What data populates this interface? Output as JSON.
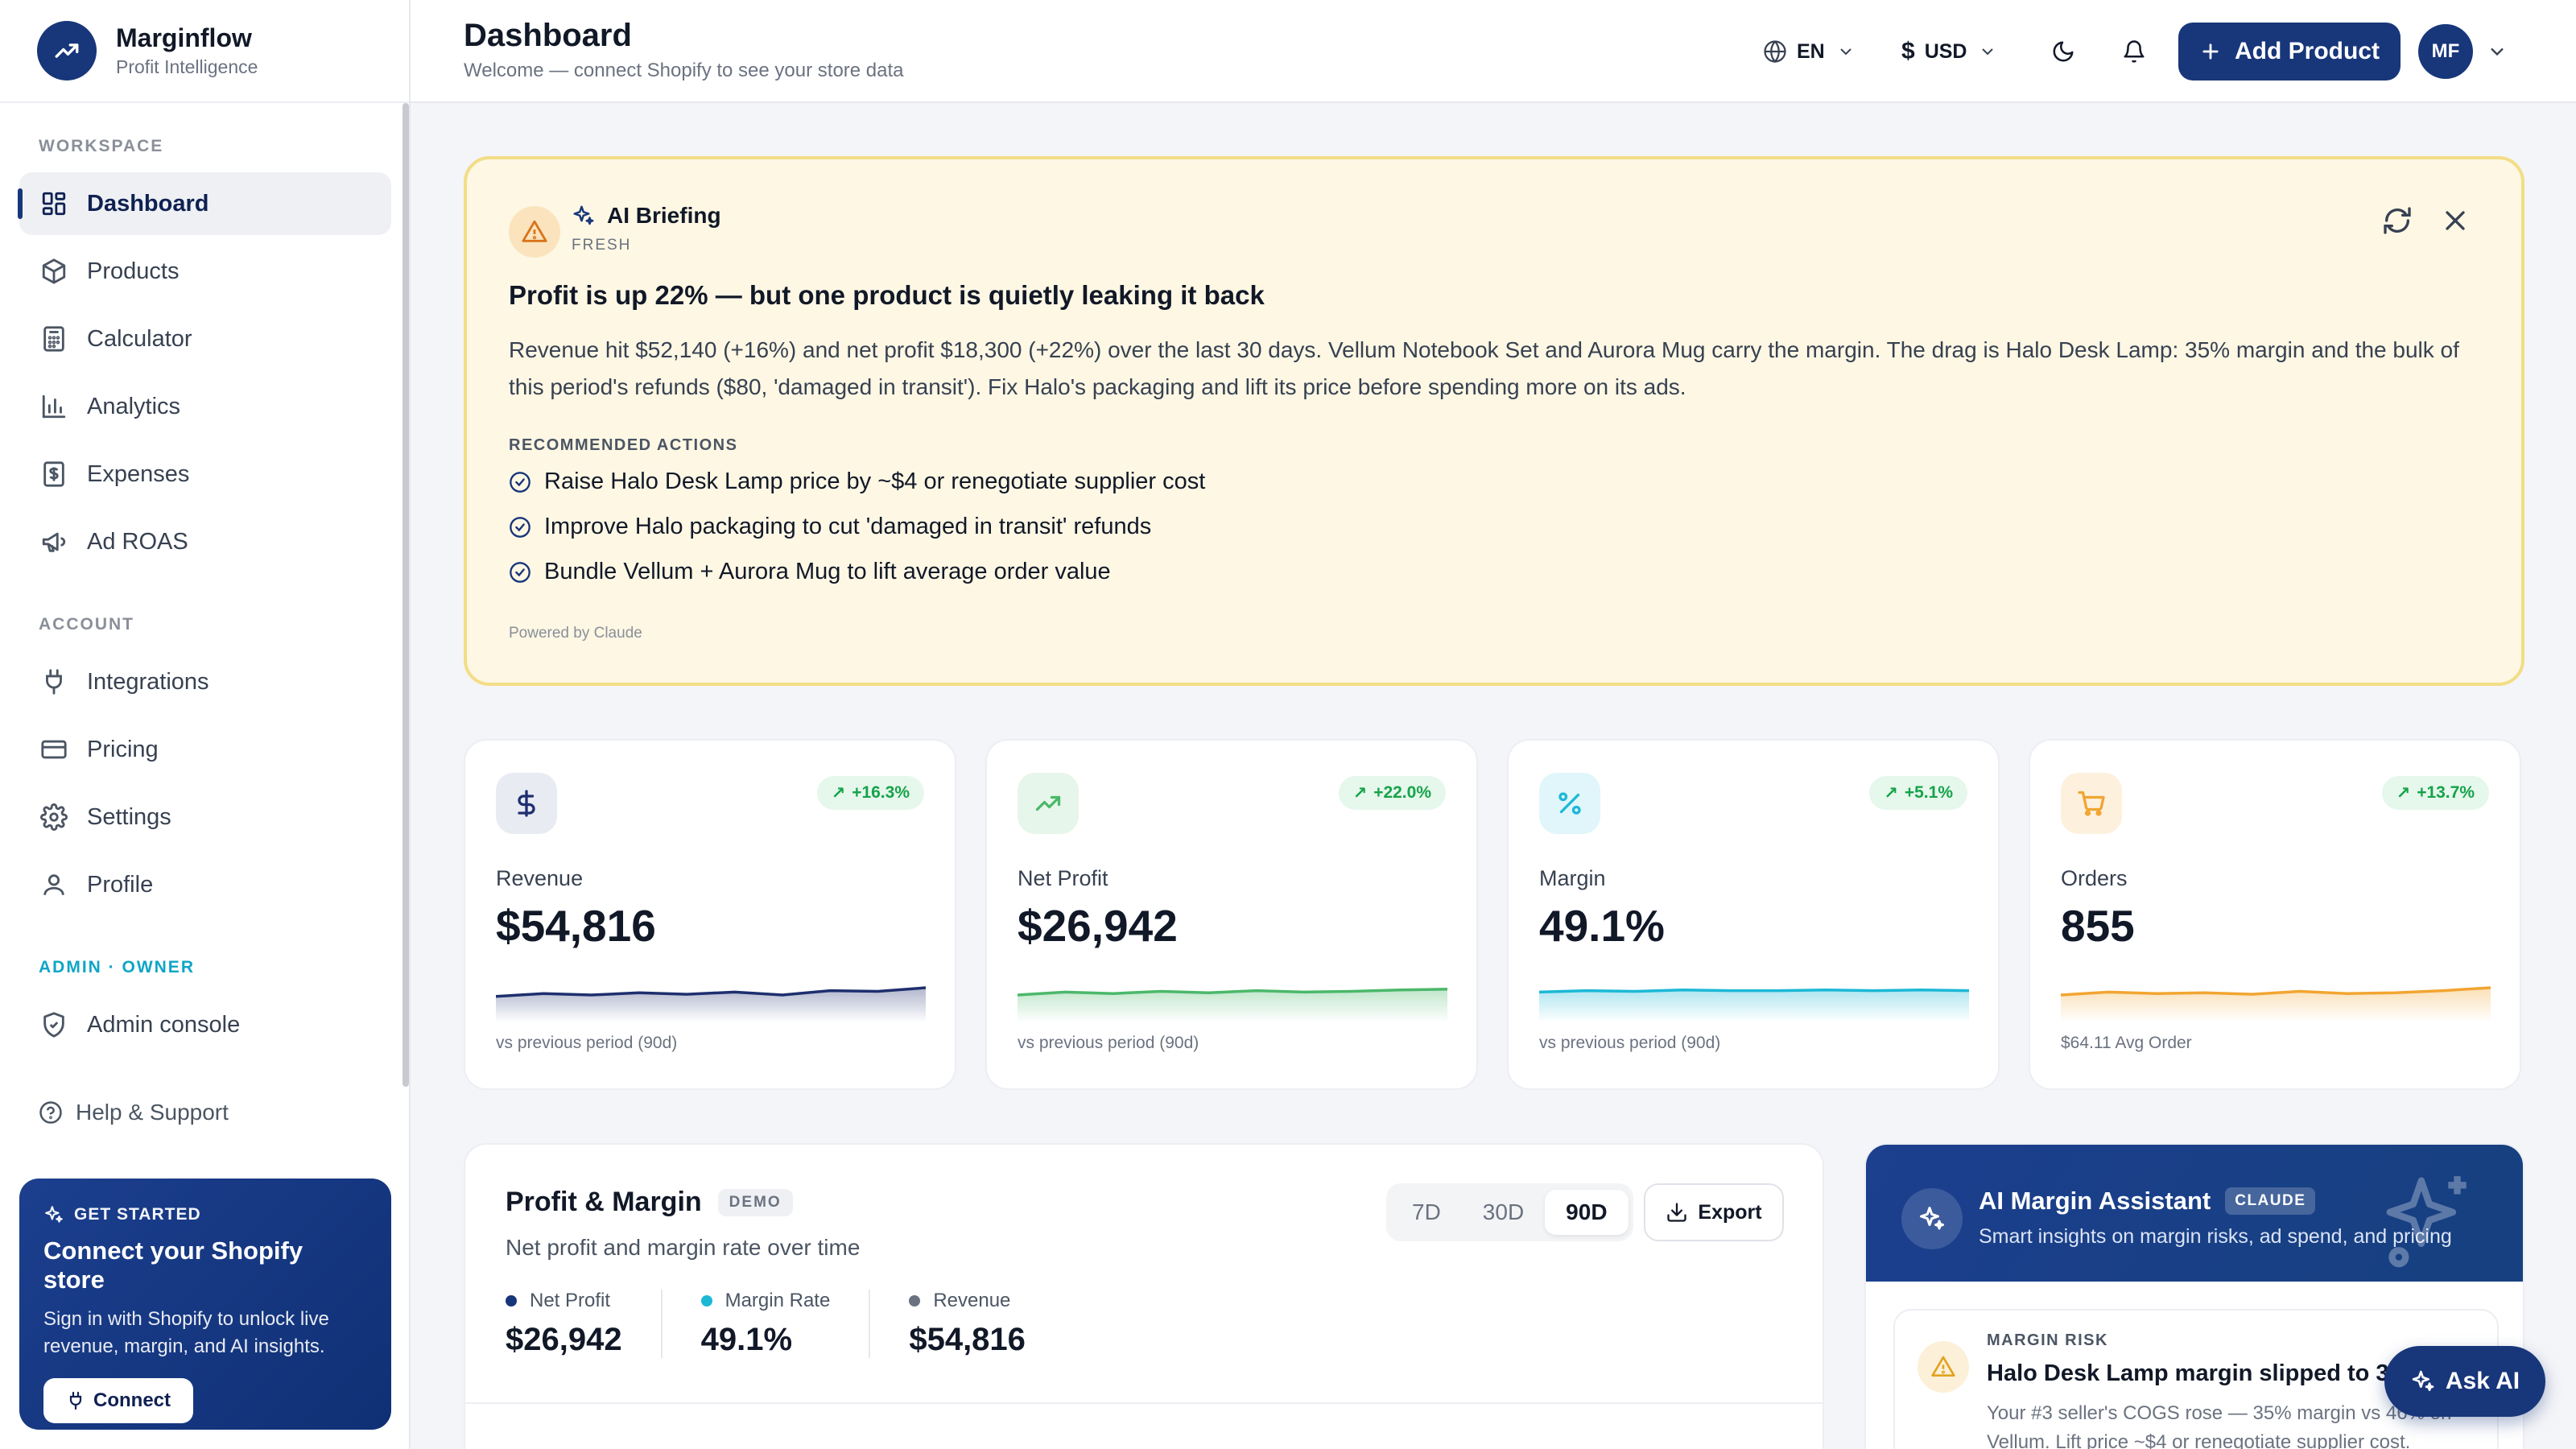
{
  "brand": {
    "name": "Marginflow",
    "subtitle": "Profit Intelligence"
  },
  "sidebar": {
    "workspace_label": "WORKSPACE",
    "workspace_items": [
      {
        "label": "Dashboard",
        "icon": "grid-icon",
        "active": true
      },
      {
        "label": "Products",
        "icon": "box-icon"
      },
      {
        "label": "Calculator",
        "icon": "calculator-icon"
      },
      {
        "label": "Analytics",
        "icon": "bar-chart-icon"
      },
      {
        "label": "Expenses",
        "icon": "receipt-icon"
      },
      {
        "label": "Ad ROAS",
        "icon": "megaphone-icon"
      }
    ],
    "account_label": "ACCOUNT",
    "account_items": [
      {
        "label": "Integrations",
        "icon": "plug-icon"
      },
      {
        "label": "Pricing",
        "icon": "credit-card-icon"
      },
      {
        "label": "Settings",
        "icon": "gear-icon"
      },
      {
        "label": "Profile",
        "icon": "user-icon"
      }
    ],
    "admin_label": "ADMIN · OWNER",
    "admin_items": [
      {
        "label": "Admin console",
        "icon": "shield-icon"
      }
    ],
    "help_label": "Help & Support",
    "cta": {
      "tag": "GET STARTED",
      "title": "Connect your Shopify store",
      "text": "Sign in with Shopify to unlock live revenue, margin, and AI insights.",
      "button": "Connect"
    }
  },
  "header": {
    "title": "Dashboard",
    "subtitle": "Welcome — connect Shopify to see your store data",
    "language": "EN",
    "currency_symbol": "$",
    "currency": "USD",
    "add_product": "Add Product",
    "avatar_initials": "MF"
  },
  "briefing": {
    "label": "AI Briefing",
    "status": "FRESH",
    "title": "Profit is up 22% — but one product is quietly leaking it back",
    "body": "Revenue hit $52,140 (+16%) and net profit $18,300 (+22%) over the last 30 days. Vellum Notebook Set and Aurora Mug carry the margin. The drag is Halo Desk Lamp: 35% margin and the bulk of this period's refunds ($80, 'damaged in transit'). Fix Halo's packaging and lift its price before spending more on its ads.",
    "actions_label": "RECOMMENDED ACTIONS",
    "actions": [
      "Raise Halo Desk Lamp price by ~$4 or renegotiate supplier cost",
      "Improve Halo packaging to cut 'damaged in transit' refunds",
      "Bundle Vellum + Aurora Mug to lift average order value"
    ],
    "powered_by": "Powered by Claude"
  },
  "kpis": [
    {
      "label": "Revenue",
      "value": "$54,816",
      "change": "+16.3%",
      "footer": "vs previous period (90d)",
      "color": "#1e2f6e",
      "icon_bg": "#e8ebf2",
      "spark": [
        52,
        48,
        50,
        47,
        49,
        46,
        50,
        44,
        45,
        40
      ]
    },
    {
      "label": "Net Profit",
      "value": "$26,942",
      "change": "+22.0%",
      "footer": "vs previous period (90d)",
      "color": "#4bb86a",
      "icon_bg": "#e6f6ea",
      "spark": [
        50,
        46,
        48,
        45,
        47,
        44,
        46,
        45,
        43,
        42
      ]
    },
    {
      "label": "Margin",
      "value": "49.1%",
      "change": "+5.1%",
      "footer": "vs previous period (90d)",
      "color": "#1cb8d6",
      "icon_bg": "#e0f6fa",
      "spark": [
        46,
        44,
        45,
        43,
        44,
        44,
        43,
        44,
        43,
        44
      ]
    },
    {
      "label": "Orders",
      "value": "855",
      "change": "+13.7%",
      "footer": "$64.11 Avg Order",
      "color": "#f2a531",
      "icon_bg": "#fdf1de",
      "spark": [
        50,
        46,
        48,
        47,
        49,
        45,
        48,
        47,
        44,
        40
      ]
    }
  ],
  "profit_margin": {
    "title": "Profit & Margin",
    "badge": "DEMO",
    "subtitle": "Net profit and margin rate over time",
    "ranges": [
      "7D",
      "30D",
      "90D"
    ],
    "active_range": "90D",
    "export": "Export",
    "stats": [
      {
        "label": "Net Profit",
        "value": "$26,942",
        "color": "#18367a"
      },
      {
        "label": "Margin Rate",
        "value": "49.1%",
        "color": "#1cb8d6"
      },
      {
        "label": "Revenue",
        "value": "$54,816",
        "color": "#6b7280"
      }
    ]
  },
  "assistant": {
    "title": "AI Margin Assistant",
    "badge": "CLAUDE",
    "subtitle": "Smart insights on margin risks, ad spend, and pricing",
    "risk_tag": "MARGIN RISK",
    "risk_title": "Halo Desk Lamp margin slipped to 35%",
    "risk_text": "Your #3 seller's COGS rose — 35% margin vs 46% on Vellum. Lift price ~$4 or renegotiate supplier cost."
  },
  "ask_ai": "Ask AI"
}
